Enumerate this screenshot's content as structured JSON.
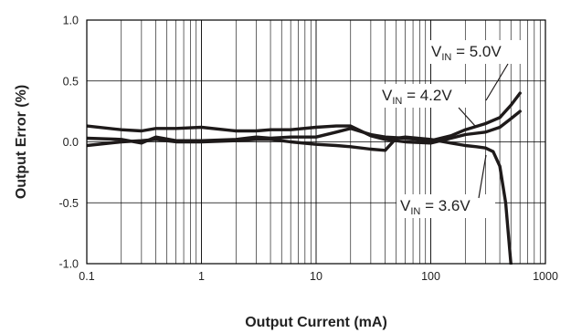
{
  "chart_data": {
    "type": "line",
    "xlabel": "Output Current (mA)",
    "ylabel": "Output Error (%)",
    "xscale": "log",
    "xlim": [
      0.1,
      1000
    ],
    "ylim": [
      -1.0,
      1.0
    ],
    "x_ticks": [
      {
        "value": 0.1,
        "label": "0.1"
      },
      {
        "value": 1,
        "label": "1"
      },
      {
        "value": 10,
        "label": "10"
      },
      {
        "value": 100,
        "label": "100"
      },
      {
        "value": 1000,
        "label": "1000"
      }
    ],
    "y_ticks": [
      {
        "value": 1.0,
        "label": "1.0"
      },
      {
        "value": 0.5,
        "label": "0.5"
      },
      {
        "value": 0.0,
        "label": "0.0"
      },
      {
        "value": -0.5,
        "label": "-0.5"
      },
      {
        "value": -1.0,
        "label": "-1.0"
      }
    ],
    "grid": true,
    "series": [
      {
        "name": "V_IN = 5.0V",
        "x": [
          0.1,
          0.2,
          0.3,
          0.4,
          0.6,
          1,
          2,
          3,
          4,
          6,
          10,
          15,
          20,
          30,
          40,
          60,
          100,
          150,
          200,
          300,
          400,
          500,
          600
        ],
        "y": [
          0.13,
          0.1,
          0.09,
          0.11,
          0.11,
          0.12,
          0.09,
          0.09,
          0.1,
          0.1,
          0.12,
          0.13,
          0.13,
          0.05,
          0.02,
          0.0,
          -0.01,
          0.03,
          0.06,
          0.08,
          0.12,
          0.19,
          0.25
        ]
      },
      {
        "name": "V_IN = 4.2V",
        "x": [
          0.1,
          0.2,
          0.3,
          0.4,
          0.6,
          1,
          2,
          3,
          4,
          6,
          10,
          15,
          20,
          30,
          40,
          60,
          100,
          150,
          200,
          300,
          400,
          500,
          600
        ],
        "y": [
          0.03,
          0.02,
          -0.01,
          0.04,
          0.01,
          0.01,
          0.02,
          0.04,
          0.03,
          0.04,
          0.04,
          0.08,
          0.11,
          0.06,
          0.04,
          0.03,
          0.01,
          0.05,
          0.1,
          0.15,
          0.2,
          0.3,
          0.4
        ]
      },
      {
        "name": "V_IN = 3.6V",
        "x": [
          0.1,
          0.2,
          0.3,
          0.4,
          0.6,
          1,
          2,
          3,
          4,
          6,
          10,
          15,
          20,
          30,
          40,
          50,
          60,
          100,
          150,
          200,
          250,
          300,
          350,
          400,
          450,
          500
        ],
        "y": [
          -0.03,
          0.0,
          0.01,
          0.02,
          0.0,
          0.0,
          0.01,
          0.02,
          0.02,
          0.0,
          -0.02,
          -0.03,
          -0.04,
          -0.06,
          -0.07,
          0.03,
          0.04,
          0.02,
          -0.01,
          -0.03,
          -0.04,
          -0.05,
          -0.08,
          -0.2,
          -0.5,
          -1.0
        ]
      }
    ],
    "annotations": [
      {
        "prefix": "V",
        "sub": "IN",
        "suffix": " = 5.0V"
      },
      {
        "prefix": "V",
        "sub": "IN",
        "suffix": " = 4.2V"
      },
      {
        "prefix": "V",
        "sub": "IN",
        "suffix": " = 3.6V"
      }
    ],
    "colors": {
      "line": "#1e1a1a",
      "grid": "#000000",
      "background": "#ffffff"
    }
  }
}
